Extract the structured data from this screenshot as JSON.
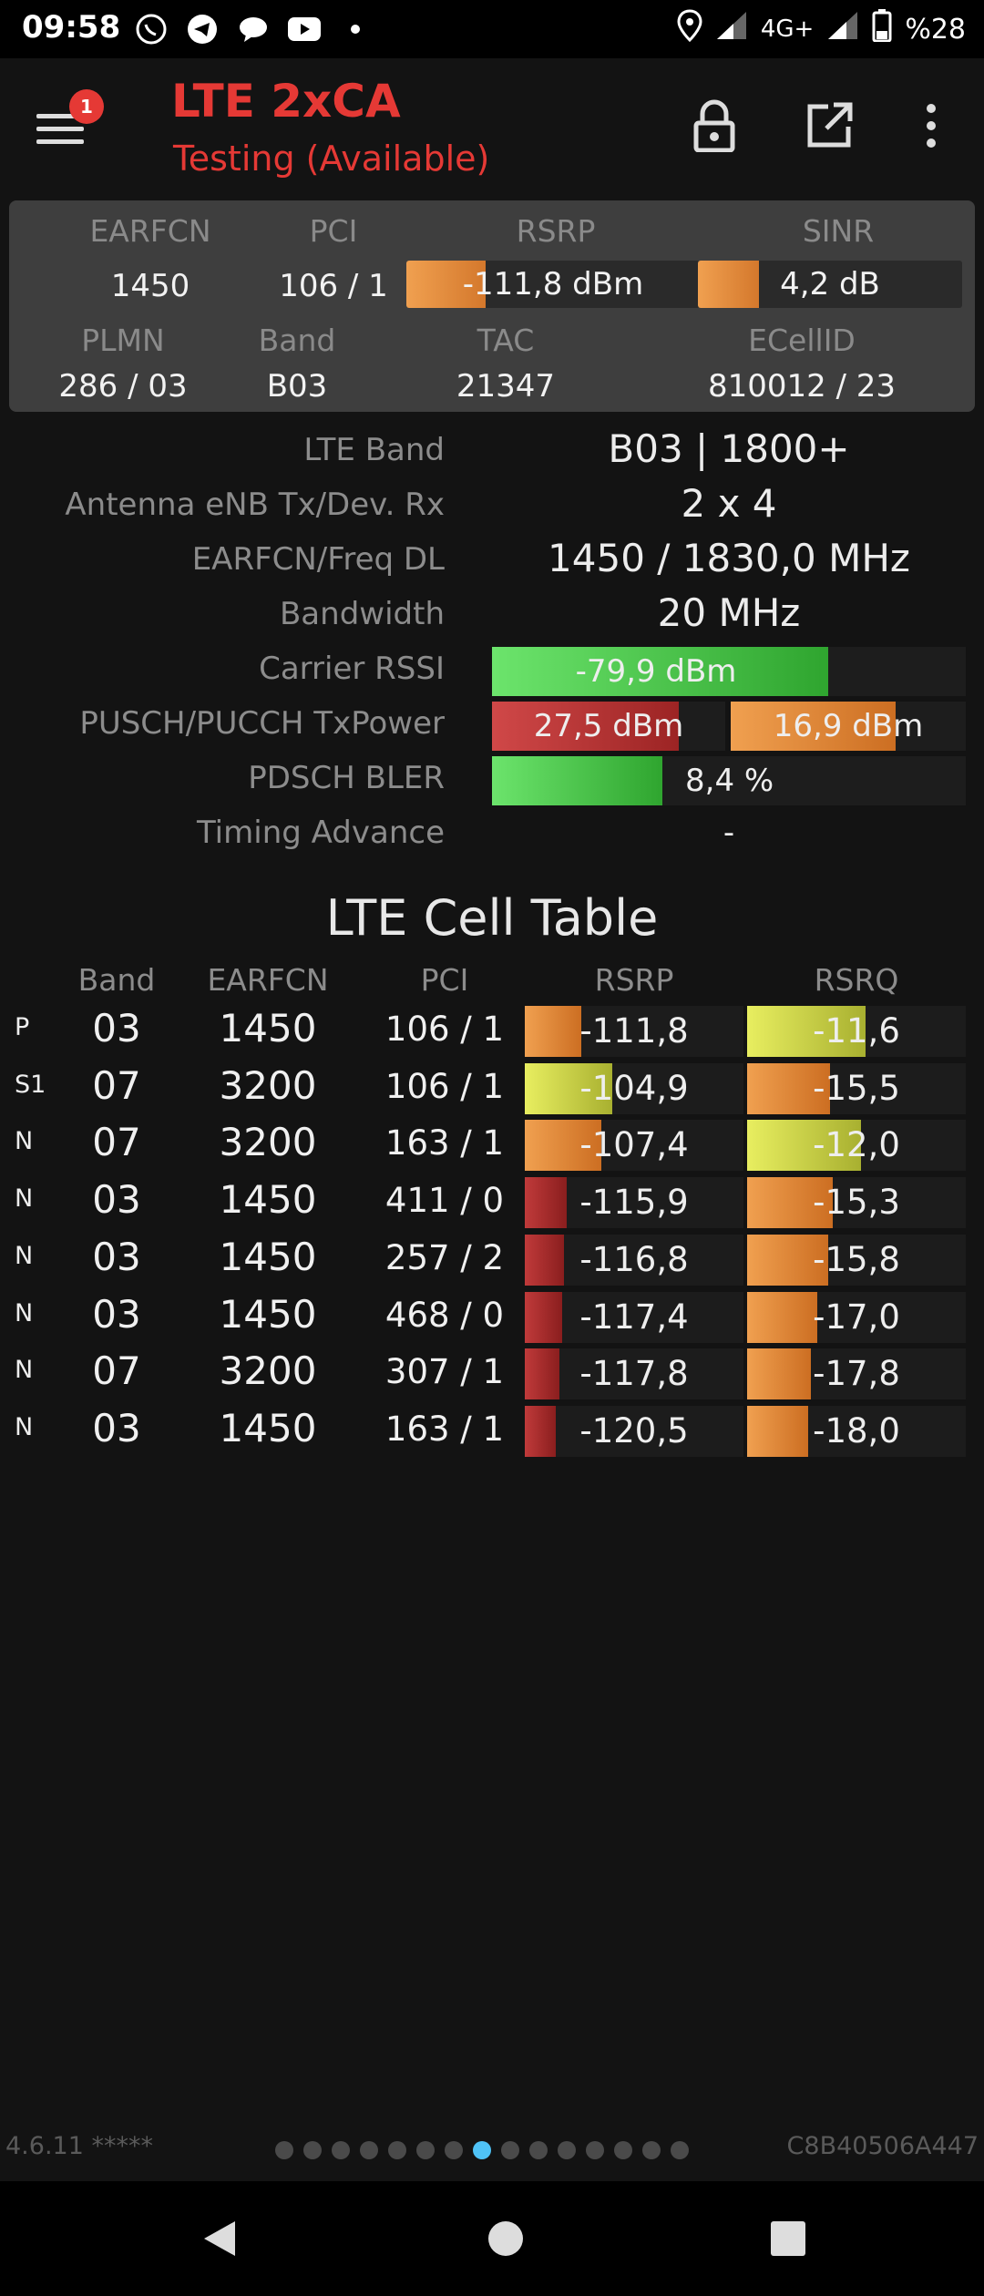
{
  "status_bar": {
    "time": "09:58",
    "left_icons": [
      "whatsapp-icon",
      "telegram-icon",
      "chat-icon",
      "youtube-icon",
      "dot-icon"
    ],
    "network": "4G+",
    "battery": "%28"
  },
  "app_bar": {
    "title": "LTE 2xCA",
    "subtitle": "Testing (Available)",
    "notification_count": "1",
    "accent_color": "#e53935"
  },
  "summary": {
    "earfcn_label": "EARFCN",
    "earfcn": "1450",
    "pci_label": "PCI",
    "pci": "106 / 1",
    "rsrp_label": "RSRP",
    "rsrp": "-111,8 dBm",
    "rsrp_level": 0.27,
    "sinr_label": "SINR",
    "sinr": "4,2 dB",
    "sinr_level": 0.23,
    "plmn_label": "PLMN",
    "plmn": "286 / 03",
    "band_label": "Band",
    "band": "B03",
    "tac_label": "TAC",
    "tac": "21347",
    "ecellid_label": "ECellID",
    "ecellid": "810012 / 23"
  },
  "details": {
    "lte_band_label": "LTE Band",
    "lte_band": "B03 | 1800+",
    "antenna_label": "Antenna eNB Tx/Dev. Rx",
    "antenna": "2 x 4",
    "earfcn_freq_label": "EARFCN/Freq DL",
    "earfcn_freq": "1450 / 1830,0 MHz",
    "bandwidth_label": "Bandwidth",
    "bandwidth": "20 MHz",
    "rssi_label": "Carrier RSSI",
    "rssi": "-79,9 dBm",
    "rssi_level": 0.71,
    "txpower_label": "PUSCH/PUCCH TxPower",
    "pusch": "27,5 dBm",
    "pusch_level": 0.8,
    "pucch": "16,9 dBm",
    "pucch_level": 0.7,
    "bler_label": "PDSCH BLER",
    "bler": "8,4 %",
    "bler_level": 0.36,
    "ta_label": "Timing Advance",
    "ta": "-"
  },
  "cell_table": {
    "title": "LTE Cell Table",
    "headers": {
      "band": "Band",
      "earfcn": "EARFCN",
      "pci": "PCI",
      "rsrp": "RSRP",
      "rsrq": "RSRQ"
    },
    "rows": [
      {
        "type": "P",
        "band": "03",
        "earfcn": "1450",
        "pci": "106 / 1",
        "rsrp": "-111,8",
        "rsrp_level": 0.26,
        "rsrp_color": "orange",
        "rsrq": "-11,6",
        "rsrq_level": 0.54,
        "rsrq_color": "yellow"
      },
      {
        "type": "S1",
        "band": "07",
        "earfcn": "3200",
        "pci": "106 / 1",
        "rsrp": "-104,9",
        "rsrp_level": 0.4,
        "rsrp_color": "yellow",
        "rsrq": "-15,5",
        "rsrq_level": 0.38,
        "rsrq_color": "orange"
      },
      {
        "type": "N",
        "band": "07",
        "earfcn": "3200",
        "pci": "163 / 1",
        "rsrp": "-107,4",
        "rsrp_level": 0.35,
        "rsrp_color": "orange",
        "rsrq": "-12,0",
        "rsrq_level": 0.52,
        "rsrq_color": "yellow"
      },
      {
        "type": "N",
        "band": "03",
        "earfcn": "1450",
        "pci": "411 / 0",
        "rsrp": "-115,9",
        "rsrp_level": 0.19,
        "rsrp_color": "red",
        "rsrq": "-15,3",
        "rsrq_level": 0.39,
        "rsrq_color": "orange"
      },
      {
        "type": "N",
        "band": "03",
        "earfcn": "1450",
        "pci": "257 / 2",
        "rsrp": "-116,8",
        "rsrp_level": 0.18,
        "rsrp_color": "red",
        "rsrq": "-15,8",
        "rsrq_level": 0.37,
        "rsrq_color": "orange"
      },
      {
        "type": "N",
        "band": "03",
        "earfcn": "1450",
        "pci": "468 / 0",
        "rsrp": "-117,4",
        "rsrp_level": 0.17,
        "rsrp_color": "red",
        "rsrq": "-17,0",
        "rsrq_level": 0.32,
        "rsrq_color": "orange"
      },
      {
        "type": "N",
        "band": "07",
        "earfcn": "3200",
        "pci": "307 / 1",
        "rsrp": "-117,8",
        "rsrp_level": 0.16,
        "rsrp_color": "red",
        "rsrq": "-17,8",
        "rsrq_level": 0.29,
        "rsrq_color": "orange"
      },
      {
        "type": "N",
        "band": "03",
        "earfcn": "1450",
        "pci": "163 / 1",
        "rsrp": "-120,5",
        "rsrp_level": 0.14,
        "rsrp_color": "red",
        "rsrq": "-18,0",
        "rsrq_level": 0.28,
        "rsrq_color": "orange"
      }
    ]
  },
  "footer": {
    "version": "4.6.11 *****",
    "device_id": "C8B40506A447",
    "page_count": 15,
    "active_page": 8
  },
  "colors": {
    "orange": "#e08a3c",
    "yellow": "#d6e04a",
    "red": "#b52a2a",
    "green": "#4cd04c",
    "page_dot_active": "#4fc3f7"
  }
}
